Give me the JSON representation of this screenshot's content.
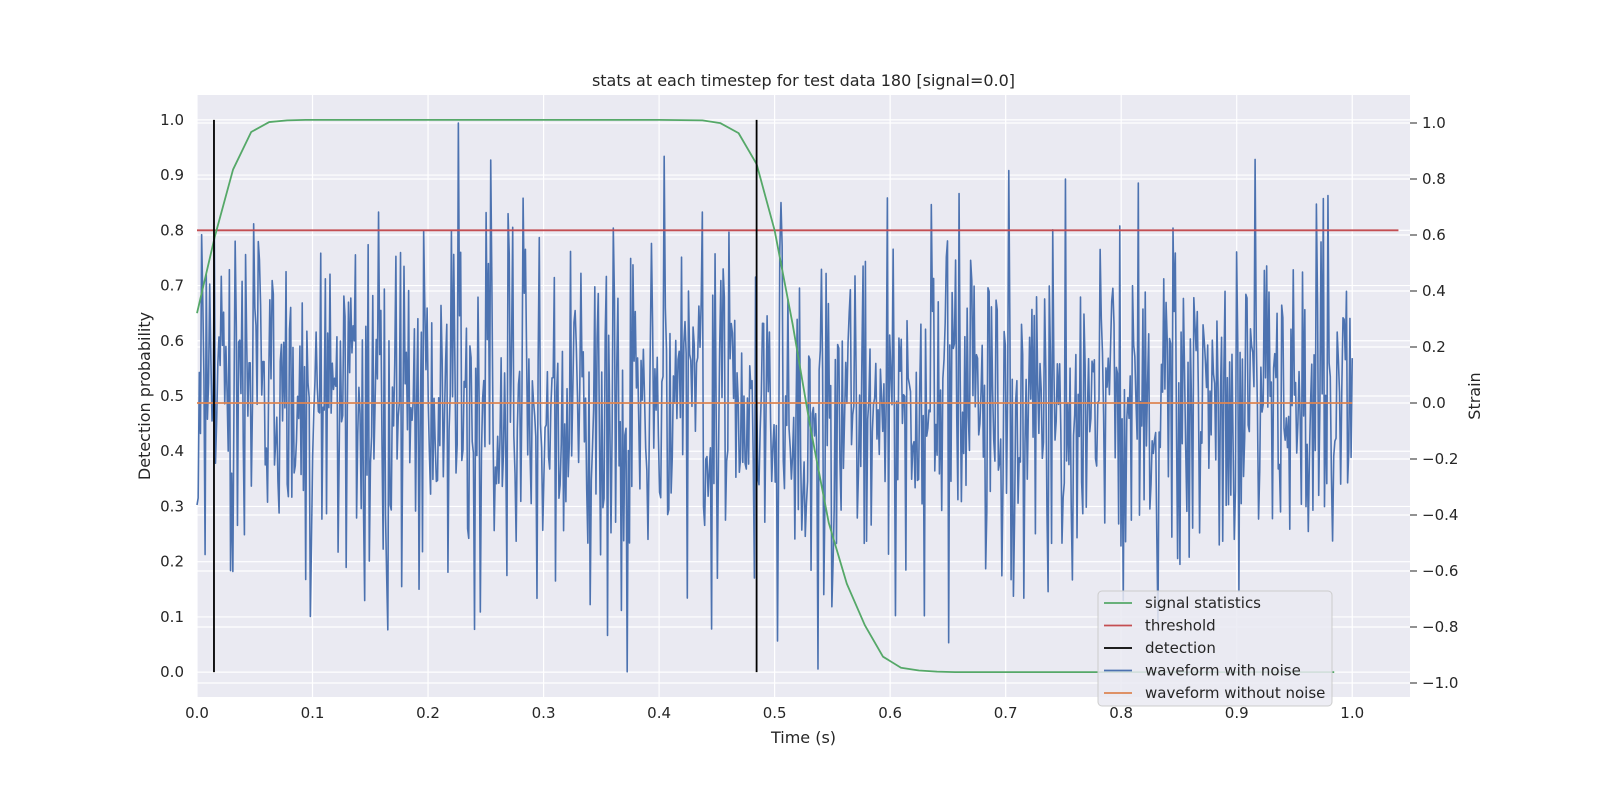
{
  "chart_data": {
    "type": "line",
    "title": "stats at each timestep for test data 180 [signal=0.0]",
    "xlabel": "Time (s)",
    "ylabel": "Detection probability",
    "y2label": "Strain",
    "xlim": [
      0.0,
      1.05
    ],
    "ylim": [
      -0.045,
      1.045
    ],
    "y2lim": [
      -1.05,
      1.1
    ],
    "xticks": [
      0.0,
      0.1,
      0.2,
      0.3,
      0.4,
      0.5,
      0.6,
      0.7,
      0.8,
      0.9,
      1.0
    ],
    "yticks": [
      0.0,
      0.1,
      0.2,
      0.3,
      0.4,
      0.5,
      0.6,
      0.7,
      0.8,
      0.9,
      1.0
    ],
    "y2ticks": [
      -1.0,
      -0.8,
      -0.6,
      -0.4,
      -0.2,
      0.0,
      0.2,
      0.4,
      0.6,
      0.8,
      1.0
    ],
    "grid": true,
    "legend_position": "bottom-right",
    "colors": {
      "background": "#EAEAF2",
      "grid": "#FFFFFF",
      "signal": "#55A868",
      "threshold": "#C44E52",
      "detection": "#000000",
      "noisy": "#4C72B0",
      "clean": "#DD8452"
    },
    "legend": [
      {
        "label": "signal statistics",
        "color": "#55A868"
      },
      {
        "label": "threshold",
        "color": "#C44E52"
      },
      {
        "label": "detection",
        "color": "#000000"
      },
      {
        "label": "waveform with noise",
        "color": "#4C72B0"
      },
      {
        "label": "waveform without noise",
        "color": "#DD8452"
      }
    ],
    "series": [
      {
        "name": "signal statistics",
        "axis": "left",
        "x": [
          0.0,
          0.0156,
          0.0312,
          0.0469,
          0.0625,
          0.0781,
          0.0938,
          0.1094,
          0.125,
          0.2,
          0.3,
          0.4,
          0.4375,
          0.4531,
          0.4688,
          0.4844,
          0.5,
          0.5156,
          0.5312,
          0.5469,
          0.5625,
          0.5781,
          0.5938,
          0.6094,
          0.625,
          0.6406,
          0.6562,
          0.7,
          0.8,
          0.9,
          0.9844
        ],
        "y": [
          0.65,
          0.79,
          0.91,
          0.978,
          0.996,
          0.999,
          1.0,
          1.0,
          1.0,
          1.0,
          1.0,
          1.0,
          0.999,
          0.994,
          0.976,
          0.92,
          0.8,
          0.63,
          0.44,
          0.27,
          0.16,
          0.085,
          0.028,
          0.008,
          0.003,
          0.001,
          0.0,
          0.0,
          0.0,
          0.0,
          0.0
        ]
      },
      {
        "name": "threshold",
        "axis": "left",
        "x": [
          0.0,
          1.04
        ],
        "y": [
          0.8,
          0.8
        ]
      },
      {
        "name": "detection",
        "axis": "left",
        "type": "vlines",
        "x": [
          0.0147,
          0.4844
        ],
        "ymin": 0.0,
        "ymax": 1.0
      },
      {
        "name": "waveform with noise",
        "axis": "right",
        "x_range": [
          0.0,
          1.0
        ],
        "n_points": 1000,
        "std": 0.3,
        "seed": 180,
        "peaks": [
          {
            "x": 0.0488,
            "y": 0.64
          },
          {
            "x": 0.2262,
            "y": 1.0
          },
          {
            "x": 0.2498,
            "y": 0.68
          },
          {
            "x": 0.165,
            "y": -0.81
          },
          {
            "x": 0.3401,
            "y": -0.72
          },
          {
            "x": 0.3555,
            "y": -0.83
          },
          {
            "x": 0.3721,
            "y": -0.96
          },
          {
            "x": 0.5023,
            "y": -0.85
          },
          {
            "x": 0.7023,
            "y": 0.83
          },
          {
            "x": 0.7518,
            "y": 0.8
          },
          {
            "x": 0.9155,
            "y": 0.87
          },
          {
            "x": 0.9752,
            "y": 0.73
          },
          {
            "x": 0.6294,
            "y": -0.76
          }
        ]
      },
      {
        "name": "waveform without noise",
        "axis": "right",
        "x": [
          0.0,
          1.0
        ],
        "y": [
          0.0,
          0.0
        ]
      }
    ]
  }
}
